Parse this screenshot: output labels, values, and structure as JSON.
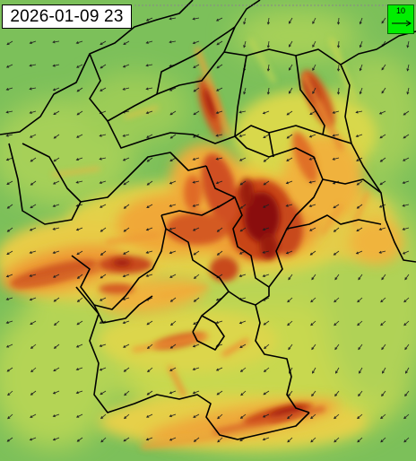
{
  "map": {
    "timestamp": "2026-01-09 23",
    "reference_vector": {
      "value": "10",
      "background": "#00ee00"
    },
    "palette": [
      "#7cc05a",
      "#a6d058",
      "#d8dc4c",
      "#f2c040",
      "#ee8a30",
      "#d4501e",
      "#a81e10",
      "#7a0c06"
    ],
    "border_color": "#000000",
    "arrow_color": "#202020"
  }
}
